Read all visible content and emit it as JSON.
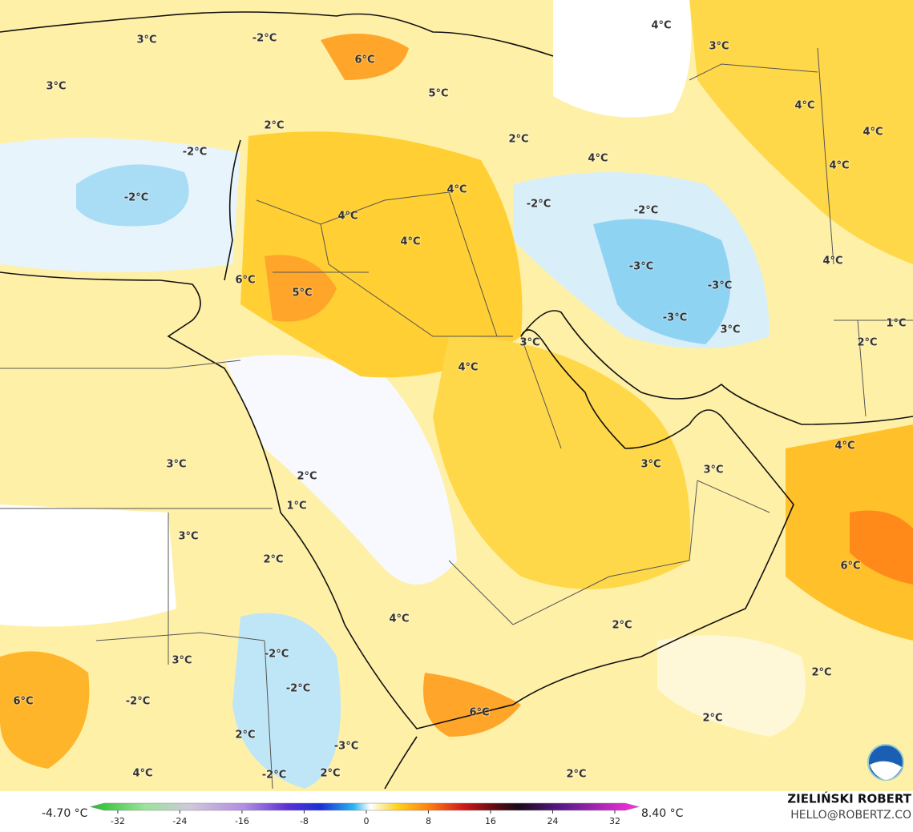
{
  "map": {
    "labels": [
      "3°C",
      "-2°C",
      "6°C",
      "4°C",
      "3°C",
      "3°C",
      "5°C",
      "4°C",
      "4°C",
      "2°C",
      "2°C",
      "-2°C",
      "4°C",
      "4°C",
      "-2°C",
      "4°C",
      "-2°C",
      "-2°C",
      "4°C",
      "4°C",
      "4°C",
      "-3°C",
      "6°C",
      "-3°C",
      "5°C",
      "-3°C",
      "3°C",
      "1°C",
      "2°C",
      "3°C",
      "4°C",
      "4°C",
      "3°C",
      "3°C",
      "3°C",
      "2°C",
      "1°C",
      "3°C",
      "2°C",
      "6°C",
      "4°C",
      "2°C",
      "3°C",
      "-2°C",
      "2°C",
      "-2°C",
      "-2°C",
      "6°C",
      "6°C",
      "2°C",
      "2°C",
      "-3°C",
      "4°C",
      "-2°C",
      "2°C",
      "2°C"
    ],
    "colorbar": {
      "min_label": "-4.70 °C",
      "max_label": "8.40 °C",
      "lim": [
        -35.5,
        35.1
      ],
      "ticks": [
        -32,
        -24,
        -16,
        -8,
        0,
        8,
        16,
        24,
        32
      ]
    },
    "credit": "ZIELIŃSKI ROBERT",
    "email": "HELLO@ROBERTZ.CO"
  }
}
